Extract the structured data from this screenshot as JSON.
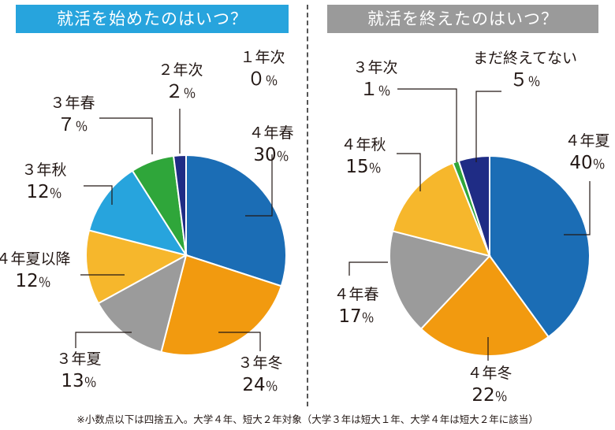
{
  "footnote": "※小数点以下は四捨五入。大学４年、短大２年対象（大学３年は短大１年、大学４年は短大２年に該当）",
  "chart_data": [
    {
      "type": "pie",
      "title": "就活を始めたのはいつ？",
      "title_color": "#27a4dd",
      "slices": [
        {
          "label": "４年春",
          "value": 30,
          "display": "30％",
          "color": "#1b6db5"
        },
        {
          "label": "３年冬",
          "value": 24,
          "display": "24％",
          "color": "#f29a0f"
        },
        {
          "label": "３年夏",
          "value": 13,
          "display": "13％",
          "color": "#9b9b9b"
        },
        {
          "label": "４年夏以降",
          "value": 12,
          "display": "12％",
          "color": "#f6b72c"
        },
        {
          "label": "３年秋",
          "value": 12,
          "display": "12％",
          "color": "#27a4dd"
        },
        {
          "label": "３年春",
          "value": 7,
          "display": "７％",
          "color": "#2fa63a"
        },
        {
          "label": "２年次",
          "value": 2,
          "display": "２％",
          "color": "#1f2c85"
        },
        {
          "label": "１年次",
          "value": 0,
          "display": "０％",
          "color": "#1f2c85"
        }
      ]
    },
    {
      "type": "pie",
      "title": "就活を終えたのはいつ？",
      "title_color": "#9a9a9a",
      "slices": [
        {
          "label": "４年夏",
          "value": 40,
          "display": "40％",
          "color": "#1b6db5"
        },
        {
          "label": "４年冬",
          "value": 22,
          "display": "22％",
          "color": "#f29a0f"
        },
        {
          "label": "４年春",
          "value": 17,
          "display": "17％",
          "color": "#9b9b9b"
        },
        {
          "label": "４年秋",
          "value": 15,
          "display": "15％",
          "color": "#f6b72c"
        },
        {
          "label": "３年次",
          "value": 1,
          "display": "１％",
          "color": "#2fa63a"
        },
        {
          "label": "まだ終えてない",
          "value": 5,
          "display": "５％",
          "color": "#1f2c85"
        }
      ]
    }
  ]
}
